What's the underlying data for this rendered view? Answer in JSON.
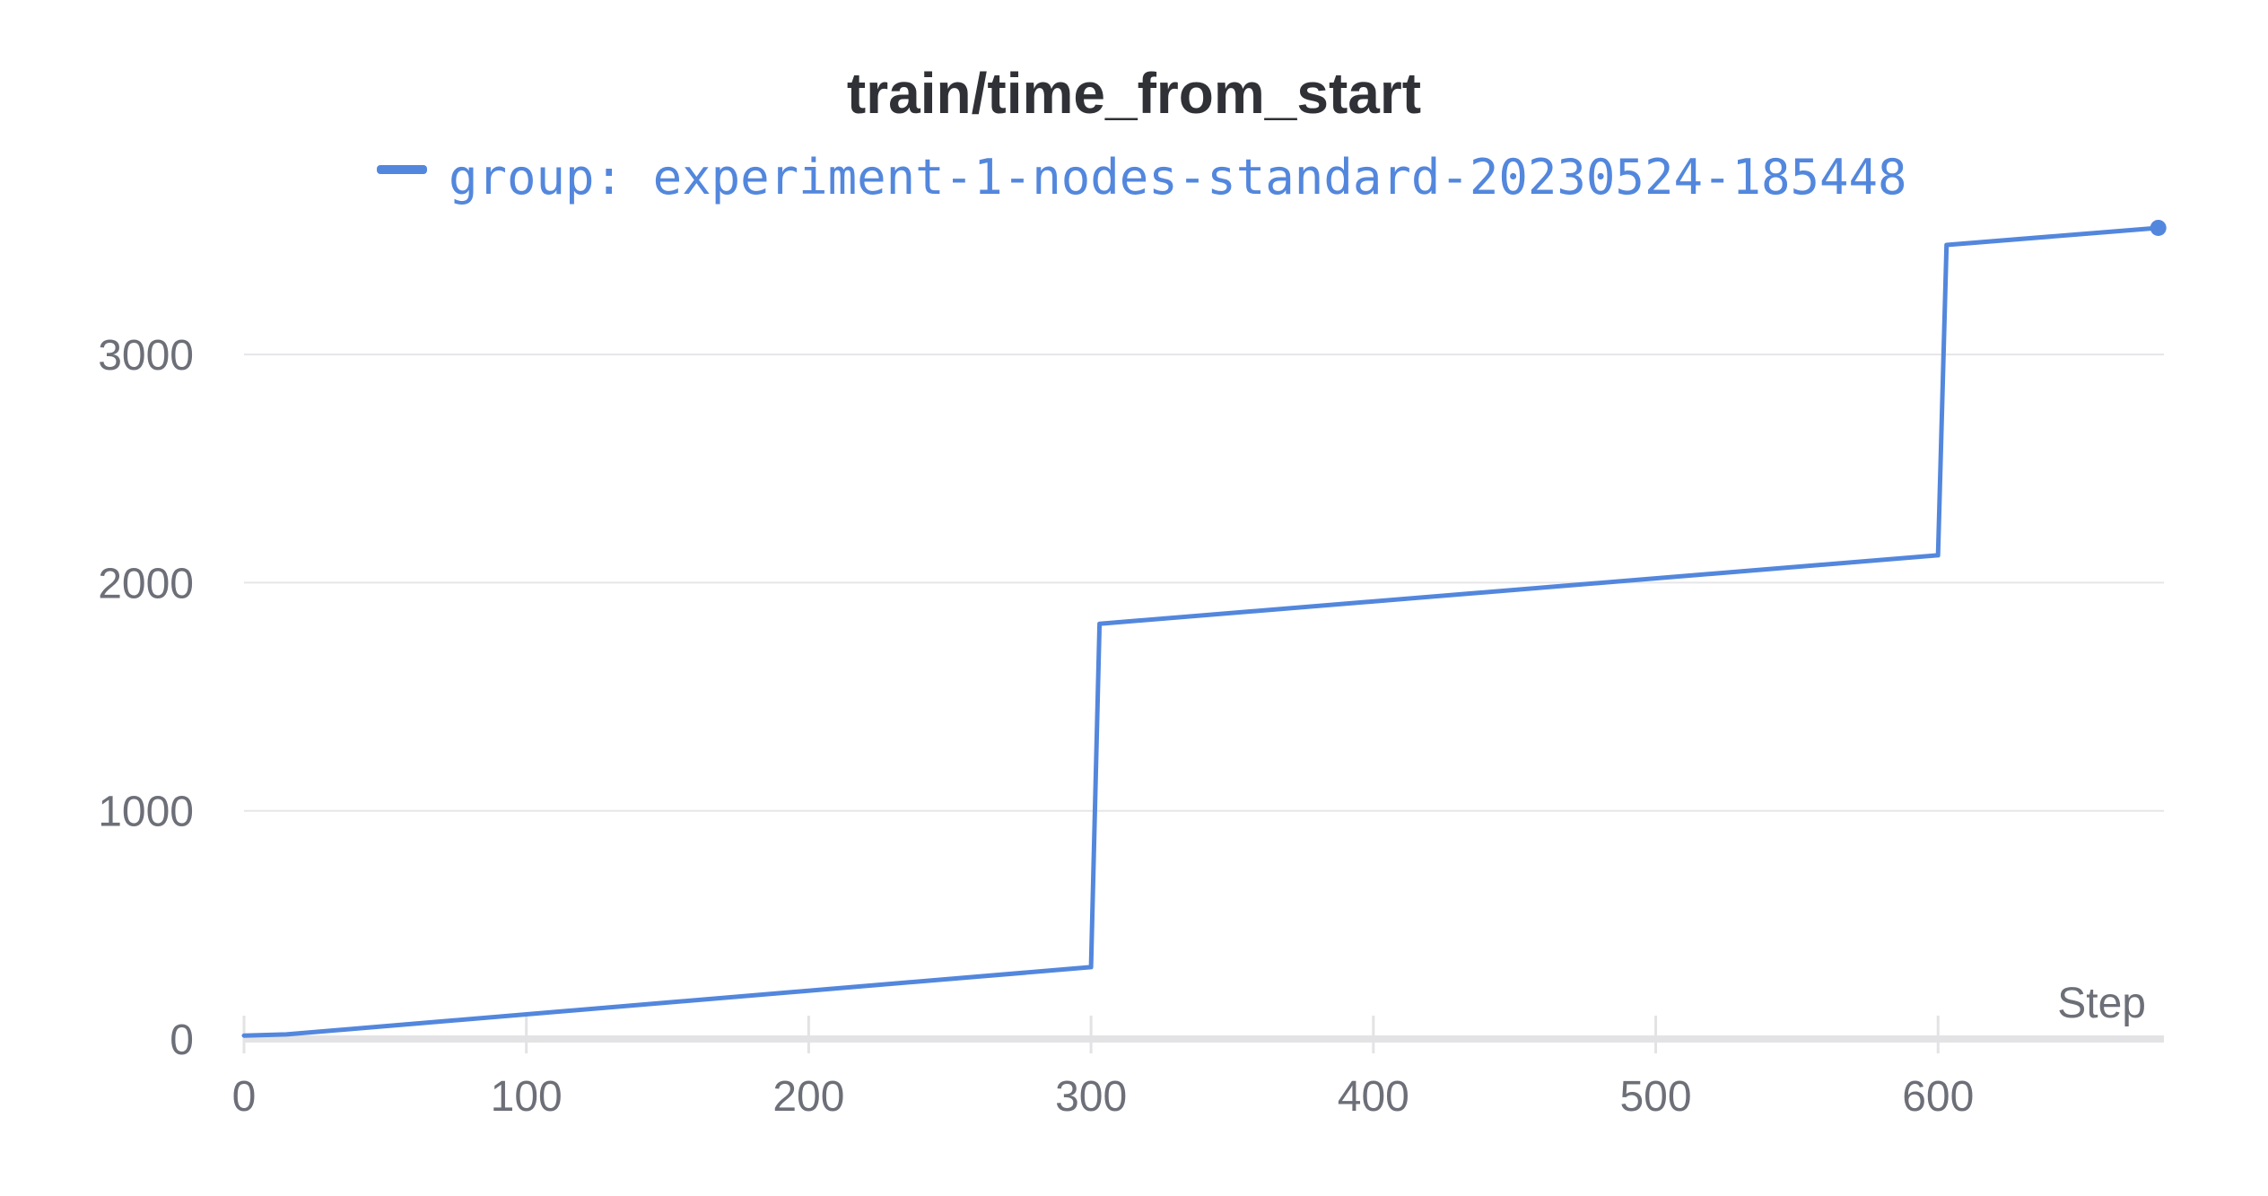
{
  "chart_data": {
    "type": "line",
    "title": "train/time_from_start",
    "xlabel": "Step",
    "ylabel": "",
    "xlim": [
      0,
      680
    ],
    "ylim": [
      0,
      3700
    ],
    "x_ticks": [
      0,
      100,
      200,
      300,
      400,
      500,
      600
    ],
    "y_ticks": [
      0,
      1000,
      2000,
      3000
    ],
    "grid": true,
    "legend_position": "top",
    "series": [
      {
        "name": "group: experiment-1-nodes-standard-20230524-185448",
        "color": "#5387dd",
        "x": [
          0,
          15,
          300,
          303,
          600,
          603,
          678
        ],
        "y": [
          15,
          20,
          315,
          1820,
          2120,
          3480,
          3555
        ]
      }
    ]
  }
}
